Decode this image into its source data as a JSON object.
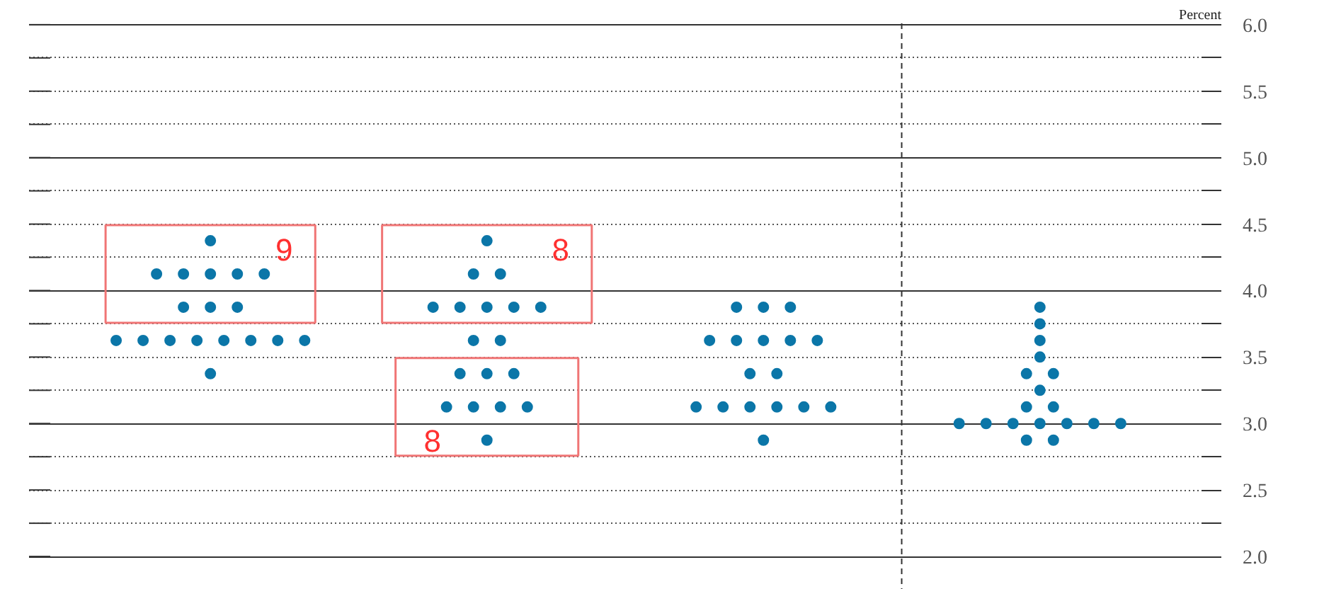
{
  "chart_data": {
    "type": "scatter",
    "ylabel": "Percent",
    "categories": [
      null,
      null,
      null,
      null
    ],
    "ylim": [
      1.75,
      6.01
    ],
    "yticks": [
      {
        "value": 2,
        "label": "2.0"
      },
      {
        "value": 2.25,
        "label": null
      },
      {
        "value": 2.5,
        "label": "2.5"
      },
      {
        "value": 2.75,
        "label": null
      },
      {
        "value": 3,
        "label": "3.0"
      },
      {
        "value": 3.25,
        "label": null
      },
      {
        "value": 3.5,
        "label": "3.5"
      },
      {
        "value": 3.75,
        "label": null
      },
      {
        "value": 4,
        "label": "4.0"
      },
      {
        "value": 4.25,
        "label": null
      },
      {
        "value": 4.5,
        "label": "4.5"
      },
      {
        "value": 4.75,
        "label": null
      },
      {
        "value": 5,
        "label": "5.0"
      },
      {
        "value": 5.25,
        "label": null
      },
      {
        "value": 5.5,
        "label": "5.5"
      },
      {
        "value": 5.75,
        "label": null
      },
      {
        "value": 6,
        "label": "6.0"
      }
    ],
    "tick_labels": "y",
    "grid": "y",
    "marker": "circle",
    "annotations": [
      "9",
      "8",
      "8"
    ],
    "series": [
      {
        "color": "#0b76a8",
        "values": [
          4.375,
          4.375,
          3.875,
          3.875
        ]
      },
      {
        "color": "#0b76a8",
        "values": [
          4.125,
          4.125,
          3.875,
          3.75
        ]
      },
      {
        "color": "#0b76a8",
        "values": [
          4.125,
          4.125,
          3.875,
          3.625
        ]
      },
      {
        "color": "#0b76a8",
        "values": [
          4.125,
          3.875,
          3.625,
          3.5
        ]
      },
      {
        "color": "#0b76a8",
        "values": [
          4.125,
          3.875,
          3.625,
          3.375
        ]
      },
      {
        "color": "#0b76a8",
        "values": [
          4.125,
          3.875,
          3.625,
          3.375
        ]
      },
      {
        "color": "#0b76a8",
        "values": [
          3.875,
          3.875,
          3.625,
          3.25
        ]
      },
      {
        "color": "#0b76a8",
        "values": [
          3.875,
          3.875,
          3.625,
          3.125
        ]
      },
      {
        "color": "#0b76a8",
        "values": [
          3.875,
          3.625,
          3.375,
          3.125
        ]
      },
      {
        "color": "#0b76a8",
        "values": [
          3.625,
          3.625,
          3.375,
          3.0
        ]
      },
      {
        "color": "#0b76a8",
        "values": [
          3.625,
          3.375,
          3.125,
          3.0
        ]
      },
      {
        "color": "#0b76a8",
        "values": [
          3.625,
          3.375,
          3.125,
          3.0
        ]
      },
      {
        "color": "#0b76a8",
        "values": [
          3.625,
          3.375,
          3.125,
          3.0
        ]
      },
      {
        "color": "#0b76a8",
        "values": [
          3.625,
          3.125,
          3.125,
          3.0
        ]
      },
      {
        "color": "#0b76a8",
        "values": [
          3.625,
          3.125,
          3.125,
          3.0
        ]
      },
      {
        "color": "#0b76a8",
        "values": [
          3.625,
          3.125,
          3.125,
          3.0
        ]
      },
      {
        "color": "#0b76a8",
        "values": [
          3.625,
          3.125,
          2.875,
          2.875
        ]
      },
      {
        "color": "#0b76a8",
        "values": [
          3.375,
          2.875,
          null,
          2.875
        ]
      }
    ]
  }
}
